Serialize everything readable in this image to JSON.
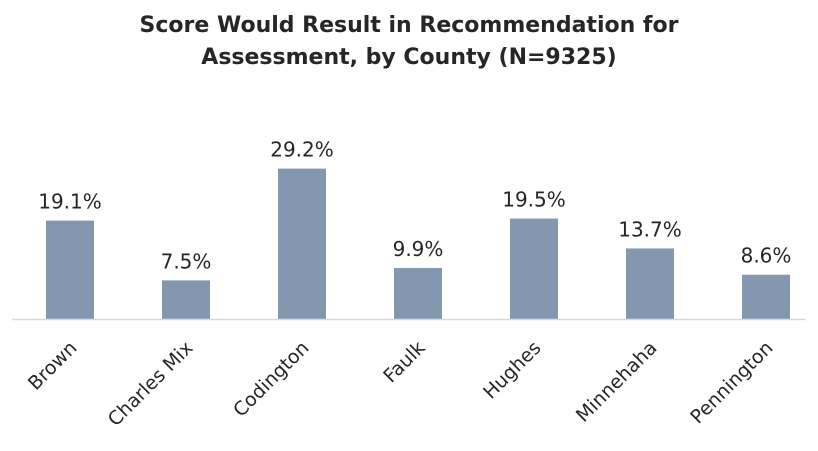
{
  "chart_data": {
    "type": "bar",
    "title_lines": [
      "Score Would Result in Recommendation for",
      "Assessment, by County (N=9325)"
    ],
    "categories": [
      "Brown",
      "Charles Mix",
      "Codington",
      "Faulk",
      "Hughes",
      "Minnehaha",
      "Pennington"
    ],
    "values": [
      19.1,
      7.5,
      29.2,
      9.9,
      19.5,
      13.7,
      8.6
    ],
    "value_labels": [
      "19.1%",
      "7.5%",
      "29.2%",
      "9.9%",
      "19.5%",
      "13.7%",
      "8.6%"
    ],
    "xlabel": "",
    "ylabel": "",
    "ylim": [
      0,
      30
    ],
    "grid": false,
    "legend": "none",
    "bar_color": "#8497b0",
    "axis_color": "#d9d9d9",
    "text_color": "#262626"
  }
}
